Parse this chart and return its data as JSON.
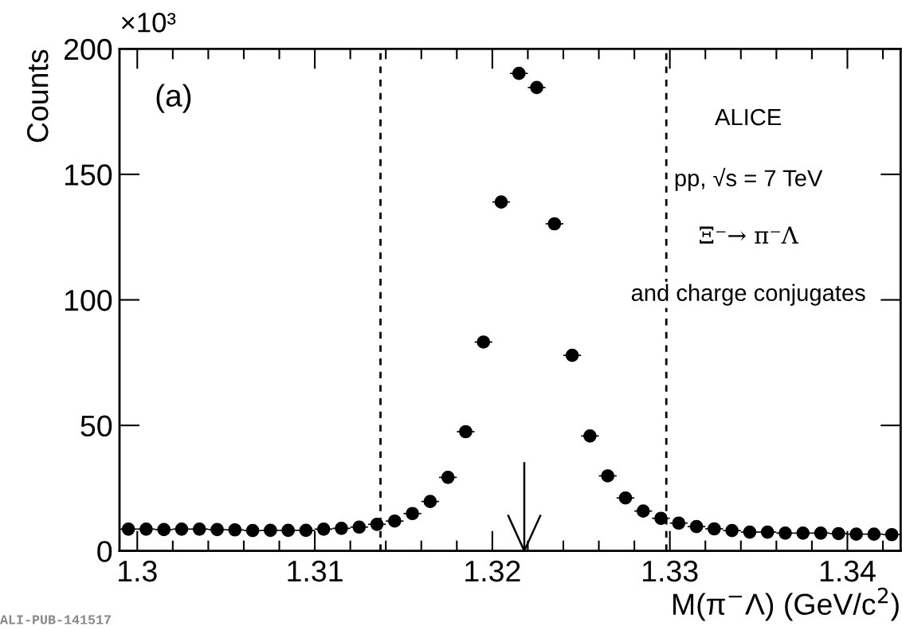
{
  "chart_data": {
    "type": "scatter",
    "xlabel": "M(π$^{−}$Λ) (GeV/c$^{2}$)",
    "ylabel": "Counts",
    "x": [
      1.2995,
      1.3005,
      1.3015,
      1.3025,
      1.3035,
      1.3045,
      1.3055,
      1.3065,
      1.3075,
      1.3085,
      1.3095,
      1.3105,
      1.3115,
      1.3125,
      1.3135,
      1.3145,
      1.3155,
      1.3165,
      1.3175,
      1.3185,
      1.3195,
      1.3205,
      1.3215,
      1.3225,
      1.3235,
      1.3245,
      1.3255,
      1.3265,
      1.3275,
      1.3285,
      1.3295,
      1.3305,
      1.3315,
      1.3325,
      1.3335,
      1.3345,
      1.3355,
      1.3365,
      1.3375,
      1.3385,
      1.3395,
      1.3405,
      1.3415,
      1.3425
    ],
    "series": [
      {
        "color": "#000000",
        "values": [
          8.7,
          8.7,
          8.5,
          8.7,
          8.7,
          8.5,
          8.4,
          8.1,
          8.2,
          8.2,
          8.2,
          8.7,
          9.0,
          9.5,
          10.6,
          11.9,
          14.9,
          19.7,
          29.3,
          47.5,
          83.2,
          139,
          190.2,
          184.6,
          130.3,
          77.9,
          45.8,
          29.9,
          21.1,
          15.9,
          13.0,
          11.1,
          9.7,
          8.8,
          8.1,
          7.5,
          7.5,
          7.1,
          7.1,
          7.1,
          6.9,
          6.7,
          6.7,
          6.5
        ],
        "xerrors": [
          0.0005,
          0.0005,
          0.0005,
          0.0005,
          0.0005,
          0.0005,
          0.0005,
          0.0005,
          0.0005,
          0.0005,
          0.0005,
          0.0005,
          0.0005,
          0.0005,
          0.0005,
          0.0005,
          0.0005,
          0.0005,
          0.0005,
          0.0005,
          0.0005,
          0.0005,
          0.0005,
          0.0005,
          0.0005,
          0.0005,
          0.0005,
          0.0005,
          0.0005,
          0.0005,
          0.0005,
          0.0005,
          0.0005,
          0.0005,
          0.0005,
          0.0005,
          0.0005,
          0.0005,
          0.0005,
          0.0005,
          0.0005,
          0.0005,
          0.0005,
          0.0005
        ]
      }
    ],
    "marker": "circle",
    "xlim": [
      1.299,
      1.343
    ],
    "xticks": [
      1.3,
      1.31,
      1.32,
      1.33,
      1.34
    ],
    "ylim": [
      0,
      200
    ],
    "yticks": [
      0,
      50,
      100,
      150,
      200
    ],
    "grid": false,
    "legend": false,
    "ref_lines": [
      {
        "axis": "x",
        "value": 1.3137,
        "label": null,
        "line_style": "dashed",
        "color": "#000000"
      },
      {
        "axis": "x",
        "value": 1.3298,
        "label": null,
        "line_style": "dashed",
        "color": "#000000"
      },
      {
        "axis": "x",
        "value": 1.3218,
        "label": null,
        "line_style": "solid",
        "color": "#000000"
      }
    ],
    "annotations": [
      "×10³",
      "(a)",
      "ALICE",
      "pp, √s = 7 TeV",
      "Ξ⁻→ π⁻Λ",
      "and charge conjugates",
      "ALI-PUB-141517"
    ]
  }
}
